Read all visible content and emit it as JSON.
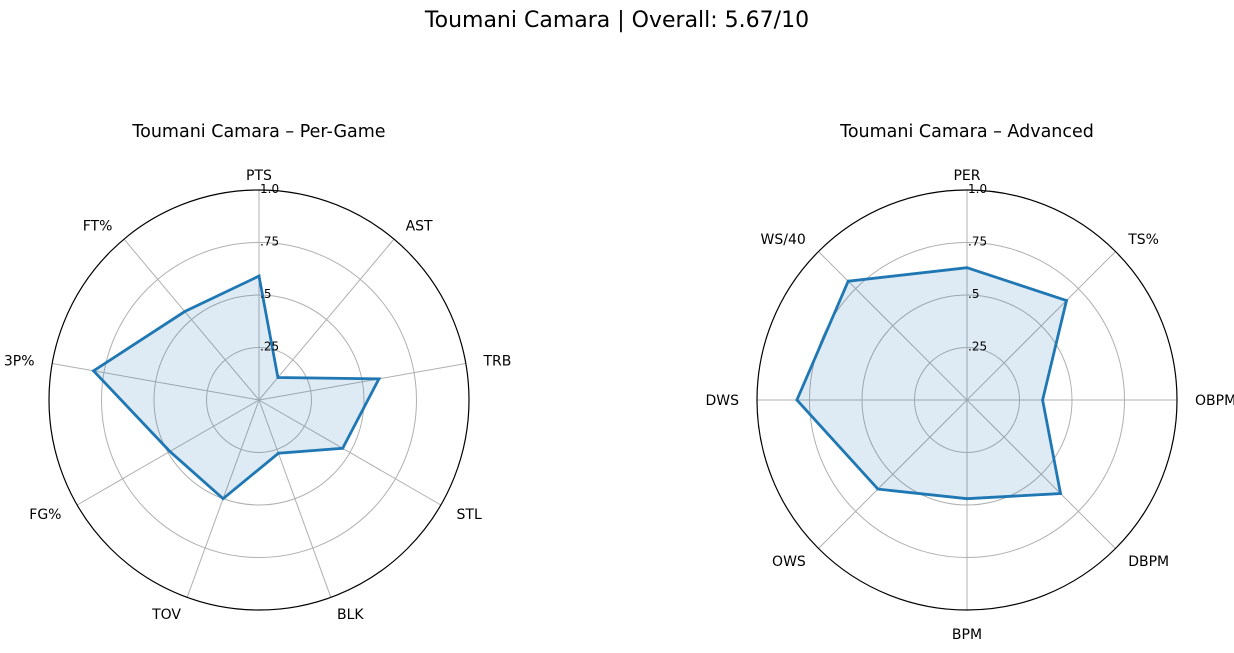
{
  "figure": {
    "title": "Toumani Camara | Overall: 5.67/10"
  },
  "colors": {
    "line": "#1f77b4",
    "fill": "#1f77b4",
    "grid": "#b0b0b0",
    "outer": "#000000"
  },
  "chart_data": [
    {
      "type": "radar",
      "title": "Toumani Camara – Per-Game",
      "categories": [
        "PTS",
        "AST",
        "TRB",
        "STL",
        "BLK",
        "TOV",
        "FG%",
        "3P%",
        "FT%"
      ],
      "values": [
        0.59,
        0.14,
        0.58,
        0.46,
        0.27,
        0.5,
        0.49,
        0.8,
        0.55
      ],
      "rlim": [
        0,
        1
      ],
      "rticks": [
        0.25,
        0.5,
        0.75,
        1.0
      ],
      "rtick_labels": [
        ".25",
        ".5",
        ".75",
        "1.0"
      ],
      "grid": true
    },
    {
      "type": "radar",
      "title": "Toumani Camara – Advanced",
      "categories": [
        "PER",
        "TS%",
        "OBPM",
        "DBPM",
        "BPM",
        "OWS",
        "DWS",
        "WS/40"
      ],
      "values": [
        0.63,
        0.67,
        0.36,
        0.63,
        0.47,
        0.6,
        0.81,
        0.8
      ],
      "rlim": [
        0,
        1
      ],
      "rticks": [
        0.25,
        0.5,
        0.75,
        1.0
      ],
      "rtick_labels": [
        ".25",
        ".5",
        ".75",
        "1.0"
      ],
      "grid": true
    }
  ]
}
